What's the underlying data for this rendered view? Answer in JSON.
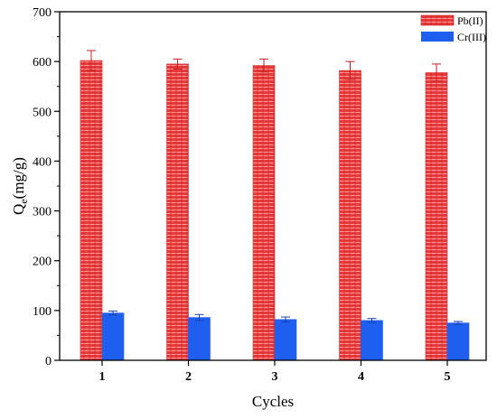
{
  "chart_data": {
    "type": "bar",
    "xlabel": "Cycles",
    "ylabel_main": "Q",
    "ylabel_sub": "e",
    "ylabel_unit": "(mg/g)",
    "categories": [
      "1",
      "2",
      "3",
      "4",
      "5"
    ],
    "ylim": [
      0,
      700
    ],
    "yticks": [
      0,
      100,
      200,
      300,
      400,
      500,
      600,
      700
    ],
    "grid": false,
    "legend_position": "top-right",
    "series": [
      {
        "name": "Pb(II)",
        "color": "#e83a3a",
        "pattern": "hatched",
        "values": [
          602,
          595,
          592,
          582,
          578
        ],
        "errors": [
          20,
          10,
          13,
          18,
          17
        ]
      },
      {
        "name": "Cr(III)",
        "color": "#1f5ff0",
        "values": [
          95,
          86,
          82,
          80,
          75
        ],
        "errors": [
          4,
          6,
          5,
          4,
          3
        ]
      }
    ]
  }
}
